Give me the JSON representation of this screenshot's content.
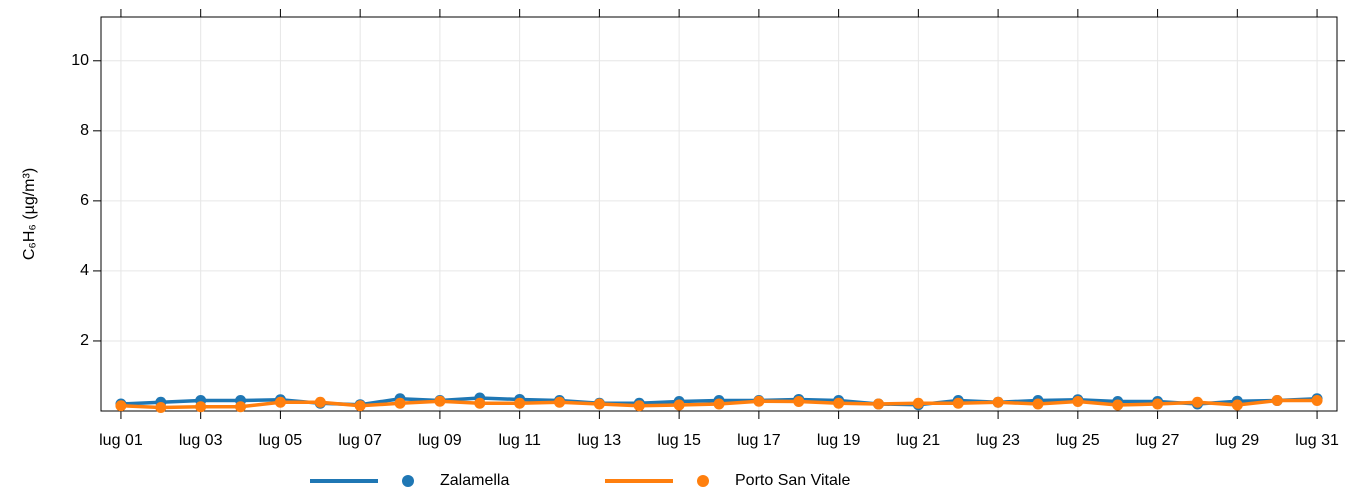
{
  "chart_data": {
    "type": "line",
    "ylabel": "C₆H₆ (µg/m³)",
    "categories": [
      "lug 01",
      null,
      "lug 03",
      null,
      "lug 05",
      null,
      "lug 07",
      null,
      "lug 09",
      null,
      "lug 11",
      null,
      "lug 13",
      null,
      "lug 15",
      null,
      "lug 17",
      null,
      "lug 19",
      null,
      "lug 21",
      null,
      "lug 23",
      null,
      "lug 25",
      null,
      "lug 27",
      null,
      "lug 29",
      null,
      "lug 31"
    ],
    "series": [
      {
        "name": "Zalamella",
        "color": "#1f77b4",
        "values": [
          0.2,
          0.25,
          0.3,
          0.3,
          0.32,
          0.22,
          0.18,
          0.35,
          0.3,
          0.37,
          0.33,
          0.3,
          0.22,
          0.22,
          0.27,
          0.3,
          0.3,
          0.33,
          0.3,
          0.2,
          0.18,
          0.3,
          0.25,
          0.3,
          0.32,
          0.27,
          0.27,
          0.2,
          0.28,
          0.3,
          0.35
        ]
      },
      {
        "name": "Porto San Vitale",
        "color": "#ff7f0e",
        "values": [
          0.15,
          0.1,
          0.12,
          0.12,
          0.25,
          0.25,
          0.15,
          0.22,
          0.28,
          0.22,
          0.22,
          0.25,
          0.2,
          0.15,
          0.17,
          0.2,
          0.28,
          0.27,
          0.22,
          0.2,
          0.22,
          0.22,
          0.25,
          0.2,
          0.27,
          0.17,
          0.2,
          0.25,
          0.17,
          0.3,
          0.3
        ]
      }
    ],
    "ylim": [
      0,
      11.25
    ],
    "yticks": [
      2,
      4,
      6,
      8,
      10
    ],
    "grid": true,
    "legend": "bottom"
  }
}
